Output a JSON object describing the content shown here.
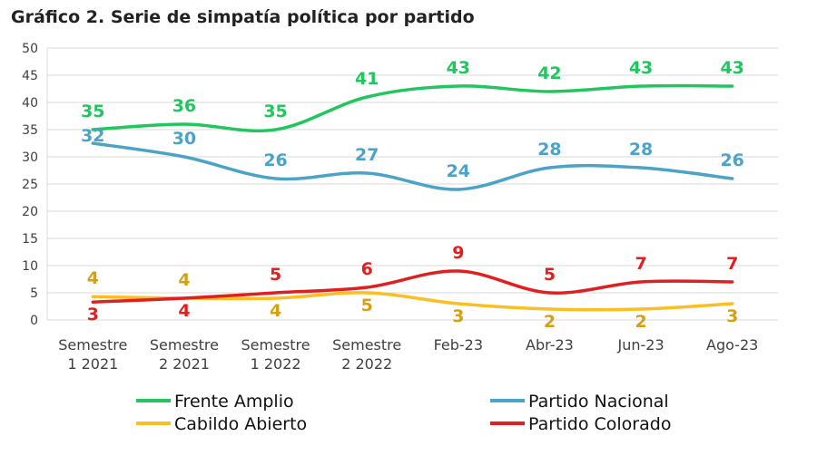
{
  "title": "Gráfico 2. Serie de simpatía política por partido",
  "chart_data": {
    "type": "line",
    "title": "Gráfico 2. Serie de simpatía política por partido",
    "categories": [
      [
        "Semestre",
        "1 2021"
      ],
      [
        "Semestre",
        "2 2021"
      ],
      [
        "Semestre",
        "1 2022"
      ],
      [
        "Semestre",
        "2 2022"
      ],
      [
        "Feb-23"
      ],
      [
        "Abr-23"
      ],
      [
        "Jun-23"
      ],
      [
        "Ago-23"
      ]
    ],
    "ylim": [
      0,
      50
    ],
    "yticks": [
      0,
      5,
      10,
      15,
      20,
      25,
      30,
      35,
      40,
      45,
      50
    ],
    "grid": "horizontal",
    "legend_position": "bottom",
    "series": [
      {
        "name": "Frente Amplio",
        "color": "#22c55e",
        "values": [
          35,
          36,
          35,
          41,
          43,
          42,
          43,
          43
        ],
        "labels": [
          "35",
          "36",
          "35",
          "41",
          "43",
          "42",
          "43",
          "43"
        ]
      },
      {
        "name": "Partido Nacional",
        "color": "#4ba3c7",
        "values": [
          32.5,
          30,
          26,
          27,
          24,
          28,
          28,
          26
        ],
        "labels": [
          "32",
          "30",
          "26",
          "27",
          "24",
          "28",
          "28",
          "26"
        ]
      },
      {
        "name": "Cabildo Abierto",
        "color": "#fbbf24",
        "values": [
          4.3,
          4,
          4,
          5,
          3,
          2,
          2,
          3
        ],
        "labels": [
          "4",
          "4",
          "4",
          "5",
          "3",
          "2",
          "2",
          "3"
        ]
      },
      {
        "name": "Partido Colorado",
        "color": "#e02020",
        "values": [
          3.3,
          4,
          5,
          6,
          9,
          5,
          7,
          7
        ],
        "labels": [
          "3",
          "4",
          "5",
          "6",
          "9",
          "5",
          "7",
          "7"
        ]
      }
    ],
    "label_text_colors": {
      "Frente Amplio": "#22c55e",
      "Partido Nacional": "#4ba3c7",
      "Cabildo Abierto": "#d4a017",
      "Partido Colorado": "#e02020"
    }
  }
}
